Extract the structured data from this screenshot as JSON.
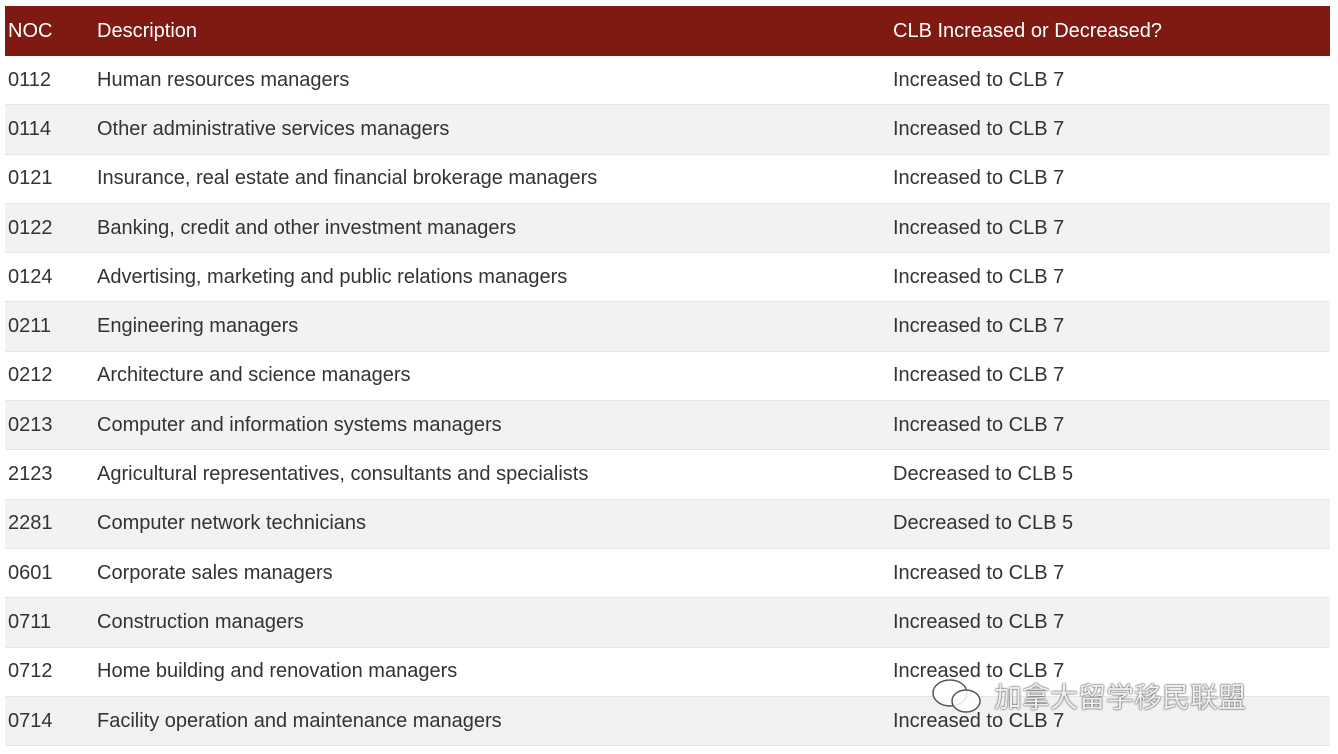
{
  "table": {
    "header": [
      "NOC",
      "Description",
      "CLB Increased or Decreased?"
    ],
    "rows": [
      [
        "0112",
        "Human resources managers",
        "Increased to CLB 7"
      ],
      [
        "0114",
        "Other administrative services managers",
        "Increased to CLB 7"
      ],
      [
        "0121",
        "Insurance, real estate and financial brokerage managers",
        "Increased to CLB 7"
      ],
      [
        "0122",
        "Banking, credit and other investment managers",
        "Increased to CLB 7"
      ],
      [
        "0124",
        "Advertising, marketing and public relations managers",
        "Increased to CLB 7"
      ],
      [
        "0211",
        "Engineering managers",
        "Increased to CLB 7"
      ],
      [
        "0212",
        "Architecture and science managers",
        "Increased to CLB 7"
      ],
      [
        "0213",
        "Computer and information systems managers",
        "Increased to CLB 7"
      ],
      [
        "2123",
        "Agricultural representatives, consultants and specialists",
        "Decreased to CLB 5"
      ],
      [
        "2281",
        "Computer network technicians",
        "Decreased to CLB 5"
      ],
      [
        "0601",
        "Corporate sales managers",
        "Increased to CLB 7"
      ],
      [
        "0711",
        "Construction managers",
        "Increased to CLB 7"
      ],
      [
        "0712",
        "Home building and renovation managers",
        "Increased to CLB 7"
      ],
      [
        "0714",
        "Facility operation and maintenance managers",
        "Increased to CLB 7"
      ]
    ]
  },
  "watermark": "加拿大留学移民联盟"
}
